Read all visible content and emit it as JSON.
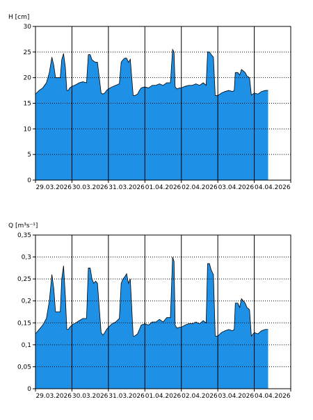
{
  "chart_data": [
    {
      "type": "area",
      "ylabel": "H [cm]",
      "ylim": [
        0,
        30
      ],
      "yticks": [
        0,
        5,
        10,
        15,
        20,
        25,
        30
      ],
      "ytick_labels": [
        "0",
        "5",
        "10",
        "15",
        "20",
        "25",
        "30"
      ],
      "date_labels": [
        "29.03.2026",
        "30.03.2026",
        "31.03.2026",
        "01.04.2026",
        "02.04.2026",
        "03.04.2026",
        "04.04.2026"
      ],
      "xlim_days": [
        0,
        7.0
      ],
      "grid": true,
      "fill_color": "#1e90e6",
      "series": [
        {
          "x": [
            0,
            0.1,
            0.2,
            0.3,
            0.38,
            0.45,
            0.5,
            0.55,
            0.62,
            0.68,
            0.72,
            0.77,
            0.82,
            0.86,
            0.9,
            0.94,
            1.0,
            1.1,
            1.2,
            1.3,
            1.4,
            1.45,
            1.5,
            1.55,
            1.6,
            1.65,
            1.7,
            1.8,
            1.85,
            1.9,
            1.95,
            2.0,
            2.1,
            2.2,
            2.3,
            2.35,
            2.4,
            2.45,
            2.5,
            2.55,
            2.6,
            2.68,
            2.72,
            2.8,
            2.85,
            2.9,
            3.0,
            3.1,
            3.2,
            3.3,
            3.4,
            3.5,
            3.6,
            3.7,
            3.76,
            3.8,
            3.83,
            3.88,
            3.95,
            4.0,
            4.1,
            4.2,
            4.3,
            4.4,
            4.5,
            4.6,
            4.68,
            4.72,
            4.77,
            4.82,
            4.88,
            4.93,
            5.0,
            5.1,
            5.2,
            5.3,
            5.4,
            5.45,
            5.48,
            5.55,
            5.6,
            5.65,
            5.7,
            5.75,
            5.8,
            5.87,
            5.92,
            6.0,
            6.1,
            6.2,
            6.3,
            6.38
          ],
          "y": [
            16.8,
            17.5,
            18.0,
            19.0,
            21.0,
            24.0,
            22.5,
            20.0,
            20.0,
            20.0,
            23.5,
            24.7,
            22.0,
            17.5,
            17.5,
            18.0,
            18.3,
            18.6,
            19.0,
            19.2,
            19.0,
            24.5,
            24.5,
            23.5,
            23.2,
            23.0,
            23.0,
            17.0,
            16.8,
            17.0,
            17.5,
            17.8,
            18.2,
            18.5,
            18.8,
            23.0,
            23.5,
            23.8,
            23.8,
            23.0,
            23.6,
            16.5,
            16.5,
            16.8,
            17.5,
            18.0,
            18.2,
            18.0,
            18.5,
            18.5,
            18.8,
            18.5,
            19.0,
            19.0,
            25.5,
            25.0,
            18.2,
            17.8,
            18.0,
            18.0,
            18.3,
            18.5,
            18.5,
            18.8,
            18.5,
            19.0,
            18.5,
            25.0,
            25.0,
            24.5,
            24.0,
            16.5,
            16.5,
            17.0,
            17.3,
            17.5,
            17.3,
            17.5,
            21.0,
            21.0,
            20.5,
            21.6,
            21.3,
            21.0,
            20.3,
            20.0,
            16.6,
            17.0,
            16.8,
            17.3,
            17.5,
            17.5
          ]
        }
      ]
    },
    {
      "type": "area",
      "ylabel": "Q [m³s⁻¹]",
      "ylim": [
        0,
        0.35
      ],
      "yticks": [
        0,
        0.05,
        0.1,
        0.15,
        0.2,
        0.25,
        0.3,
        0.35
      ],
      "ytick_labels": [
        "0",
        "0,05",
        "0,1",
        "0,15",
        "0,2",
        "0,25",
        "0,3",
        "0,35"
      ],
      "date_labels": [
        "29.03.2026",
        "30.03.2026",
        "31.03.2026",
        "01.04.2026",
        "02.04.2026",
        "03.04.2026",
        "04.04.2026"
      ],
      "xlim_days": [
        0,
        7.0
      ],
      "grid": true,
      "fill_color": "#1e90e6",
      "series": [
        {
          "x": [
            0,
            0.1,
            0.2,
            0.3,
            0.38,
            0.45,
            0.5,
            0.55,
            0.62,
            0.68,
            0.72,
            0.77,
            0.82,
            0.86,
            0.9,
            0.94,
            1.0,
            1.1,
            1.2,
            1.3,
            1.4,
            1.45,
            1.5,
            1.55,
            1.6,
            1.65,
            1.7,
            1.8,
            1.85,
            1.9,
            1.95,
            2.0,
            2.1,
            2.2,
            2.3,
            2.35,
            2.4,
            2.45,
            2.5,
            2.55,
            2.6,
            2.68,
            2.72,
            2.8,
            2.85,
            2.9,
            3.0,
            3.1,
            3.2,
            3.3,
            3.4,
            3.5,
            3.6,
            3.7,
            3.76,
            3.8,
            3.83,
            3.88,
            3.95,
            4.0,
            4.1,
            4.2,
            4.3,
            4.4,
            4.5,
            4.6,
            4.68,
            4.72,
            4.77,
            4.82,
            4.88,
            4.93,
            5.0,
            5.1,
            5.2,
            5.3,
            5.4,
            5.45,
            5.48,
            5.55,
            5.6,
            5.65,
            5.7,
            5.75,
            5.8,
            5.87,
            5.92,
            6.0,
            6.1,
            6.2,
            6.3,
            6.38
          ],
          "y": [
            0.125,
            0.135,
            0.145,
            0.16,
            0.2,
            0.26,
            0.23,
            0.175,
            0.175,
            0.175,
            0.25,
            0.28,
            0.21,
            0.135,
            0.135,
            0.14,
            0.145,
            0.15,
            0.155,
            0.16,
            0.16,
            0.275,
            0.275,
            0.25,
            0.24,
            0.245,
            0.24,
            0.128,
            0.122,
            0.128,
            0.135,
            0.14,
            0.148,
            0.152,
            0.16,
            0.24,
            0.25,
            0.255,
            0.262,
            0.24,
            0.25,
            0.12,
            0.12,
            0.125,
            0.135,
            0.145,
            0.148,
            0.145,
            0.152,
            0.152,
            0.158,
            0.152,
            0.162,
            0.162,
            0.3,
            0.29,
            0.145,
            0.138,
            0.14,
            0.14,
            0.145,
            0.148,
            0.148,
            0.152,
            0.148,
            0.155,
            0.15,
            0.285,
            0.285,
            0.27,
            0.26,
            0.12,
            0.12,
            0.128,
            0.132,
            0.135,
            0.132,
            0.135,
            0.195,
            0.195,
            0.185,
            0.205,
            0.2,
            0.195,
            0.185,
            0.18,
            0.12,
            0.128,
            0.125,
            0.132,
            0.135,
            0.135
          ]
        }
      ]
    }
  ]
}
